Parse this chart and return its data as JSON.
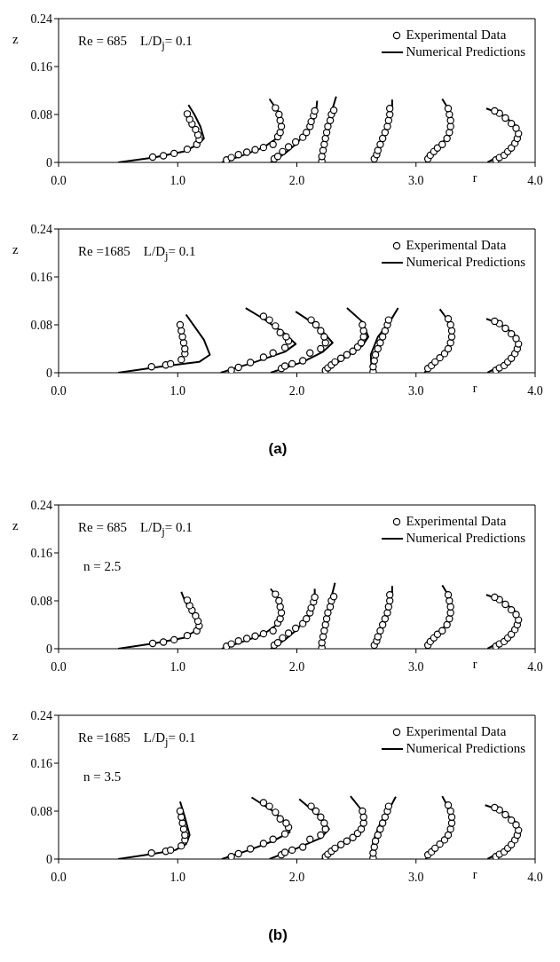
{
  "chart_data": [
    {
      "type": "scatter",
      "xlabel": "r",
      "ylabel": "z",
      "xlim": [
        0,
        4
      ],
      "ylim": [
        0,
        0.24
      ],
      "xticks": [
        {
          "value": 0,
          "label": "0.0"
        },
        {
          "value": 1,
          "label": "1.0"
        },
        {
          "value": 2,
          "label": "2.0"
        },
        {
          "value": 3,
          "label": "3.0"
        },
        {
          "value": 4,
          "label": "4.0"
        }
      ],
      "yticks": [
        0,
        0.08,
        0.16,
        0.24
      ],
      "legend": "top right",
      "annotations": [
        "Re = 685    L/D$_{j}$= 0.1"
      ],
      "series": [
        {
          "name": "Experimental Data",
          "type": "scatter",
          "color": "#000000",
          "marker": "circle",
          "x": [
            0.79,
            0.88,
            0.97,
            1.08,
            1.16,
            1.18,
            1.17,
            1.15,
            1.12,
            1.1,
            1.08,
            1.41,
            1.45,
            1.51,
            1.58,
            1.65,
            1.72,
            1.8,
            1.84,
            1.86,
            1.87,
            1.86,
            1.85,
            1.82,
            1.81,
            1.84,
            1.88,
            1.93,
            1.99,
            2.05,
            2.08,
            2.11,
            2.12,
            2.14,
            2.15,
            2.21,
            2.21,
            2.22,
            2.23,
            2.24,
            2.25,
            2.26,
            2.28,
            2.29,
            2.31,
            2.65,
            2.67,
            2.68,
            2.7,
            2.72,
            2.74,
            2.76,
            2.77,
            2.78,
            2.78,
            3.1,
            3.12,
            3.15,
            3.18,
            3.22,
            3.26,
            3.28,
            3.29,
            3.29,
            3.28,
            3.27,
            3.67,
            3.7,
            3.74,
            3.77,
            3.8,
            3.83,
            3.85,
            3.86,
            3.84,
            3.8,
            3.75,
            3.7,
            3.66
          ],
          "values": [
            0.009,
            0.011,
            0.015,
            0.022,
            0.03,
            0.038,
            0.046,
            0.055,
            0.064,
            0.072,
            0.081,
            0.004,
            0.008,
            0.013,
            0.017,
            0.021,
            0.025,
            0.03,
            0.043,
            0.05,
            0.06,
            0.07,
            0.08,
            0.091,
            0.006,
            0.01,
            0.018,
            0.026,
            0.034,
            0.042,
            0.05,
            0.06,
            0.068,
            0.078,
            0.086,
            0.002,
            0.01,
            0.02,
            0.03,
            0.04,
            0.05,
            0.06,
            0.07,
            0.08,
            0.087,
            0.006,
            0.013,
            0.02,
            0.03,
            0.04,
            0.05,
            0.06,
            0.07,
            0.08,
            0.09,
            0.006,
            0.012,
            0.018,
            0.024,
            0.03,
            0.04,
            0.05,
            0.06,
            0.07,
            0.08,
            0.09,
            0.004,
            0.008,
            0.012,
            0.018,
            0.024,
            0.032,
            0.04,
            0.048,
            0.057,
            0.065,
            0.074,
            0.082,
            0.086
          ]
        },
        {
          "name": "Numerical Predictions",
          "type": "line",
          "color": "#000000",
          "line_style": "solid",
          "x": [
            0.5,
            0.8,
            1.05,
            1.17,
            1.22,
            1.19,
            1.14,
            1.09,
            null,
            1.37,
            1.55,
            1.72,
            1.83,
            1.88,
            1.86,
            1.77,
            null,
            1.78,
            1.9,
            2.0,
            2.1,
            2.16,
            2.17,
            null,
            2.2,
            2.23,
            2.27,
            2.33,
            null,
            2.64,
            2.7,
            2.76,
            2.8,
            2.8,
            null,
            3.08,
            3.2,
            3.28,
            3.3,
            3.27,
            3.22,
            null,
            3.6,
            3.75,
            3.84,
            3.87,
            3.82,
            3.7,
            3.59
          ],
          "values": [
            0,
            0.008,
            0.018,
            0.03,
            0.04,
            0.06,
            0.08,
            0.096,
            null,
            0,
            0.012,
            0.025,
            0.04,
            0.06,
            0.08,
            0.106,
            null,
            0,
            0.015,
            0.032,
            0.055,
            0.08,
            0.103,
            null,
            0,
            0.04,
            0.07,
            0.11,
            null,
            0,
            0.03,
            0.06,
            0.09,
            0.105,
            null,
            0,
            0.025,
            0.05,
            0.07,
            0.09,
            0.106,
            null,
            0,
            0.016,
            0.032,
            0.048,
            0.065,
            0.082,
            0.09
          ]
        }
      ]
    },
    {
      "type": "scatter",
      "xlabel": "r",
      "ylabel": "z",
      "xlim": [
        0,
        4
      ],
      "ylim": [
        0,
        0.24
      ],
      "xticks": [
        {
          "value": 0,
          "label": "0.0"
        },
        {
          "value": 1,
          "label": "1.0"
        },
        {
          "value": 2,
          "label": "2.0"
        },
        {
          "value": 3,
          "label": "3.0"
        },
        {
          "value": 4,
          "label": "4.0"
        }
      ],
      "yticks": [
        0,
        0.08,
        0.16,
        0.24
      ],
      "legend": "top right",
      "annotations": [
        "Re =1685    L/D$_{j}$= 0.1"
      ],
      "series": [
        {
          "name": "Experimental Data",
          "type": "scatter",
          "color": "#000000",
          "marker": "circle",
          "x": [
            0.78,
            0.9,
            0.94,
            1.03,
            1.06,
            1.06,
            1.05,
            1.04,
            1.03,
            1.02,
            1.45,
            1.51,
            1.61,
            1.72,
            1.8,
            1.9,
            1.93,
            1.91,
            1.86,
            1.82,
            1.77,
            1.72,
            1.87,
            1.9,
            1.96,
            2.05,
            2.11,
            2.2,
            2.24,
            2.23,
            2.2,
            2.16,
            2.12,
            2.24,
            2.26,
            2.29,
            2.32,
            2.37,
            2.42,
            2.47,
            2.51,
            2.54,
            2.56,
            2.56,
            2.55,
            2.64,
            2.64,
            2.65,
            2.66,
            2.68,
            2.7,
            2.72,
            2.74,
            2.76,
            2.77,
            3.1,
            3.13,
            3.16,
            3.2,
            3.24,
            3.27,
            3.29,
            3.3,
            3.3,
            3.29,
            3.27,
            3.67,
            3.7,
            3.74,
            3.77,
            3.8,
            3.83,
            3.85,
            3.86,
            3.84,
            3.8,
            3.75,
            3.7,
            3.66
          ],
          "values": [
            0.01,
            0.013,
            0.015,
            0.022,
            0.032,
            0.04,
            0.05,
            0.06,
            0.07,
            0.08,
            0.004,
            0.009,
            0.017,
            0.026,
            0.033,
            0.042,
            0.053,
            0.06,
            0.067,
            0.078,
            0.088,
            0.094,
            0.007,
            0.011,
            0.015,
            0.02,
            0.033,
            0.04,
            0.05,
            0.06,
            0.07,
            0.08,
            0.088,
            0.004,
            0.008,
            0.013,
            0.018,
            0.024,
            0.03,
            0.036,
            0.043,
            0.05,
            0.06,
            0.07,
            0.08,
            0.002,
            0.01,
            0.02,
            0.03,
            0.04,
            0.05,
            0.06,
            0.07,
            0.08,
            0.088,
            0.007,
            0.012,
            0.018,
            0.025,
            0.032,
            0.04,
            0.05,
            0.06,
            0.07,
            0.08,
            0.09,
            0.004,
            0.008,
            0.012,
            0.018,
            0.024,
            0.032,
            0.04,
            0.048,
            0.057,
            0.065,
            0.074,
            0.082,
            0.086
          ]
        },
        {
          "name": "Numerical Predictions",
          "type": "line",
          "color": "#000000",
          "line_style": "solid",
          "x": [
            0.5,
            0.85,
            1.18,
            1.27,
            1.22,
            1.07,
            null,
            1.36,
            1.65,
            1.9,
            1.99,
            1.9,
            1.72,
            1.57,
            null,
            1.78,
            2.05,
            2.22,
            2.3,
            2.22,
            2.12,
            1.99,
            null,
            2.22,
            2.4,
            2.55,
            2.6,
            2.55,
            2.42,
            null,
            2.63,
            2.62,
            2.68,
            2.78,
            2.85,
            null,
            3.07,
            3.2,
            3.29,
            3.3,
            3.26,
            3.2,
            null,
            3.6,
            3.75,
            3.84,
            3.87,
            3.82,
            3.7,
            3.59
          ],
          "values": [
            0,
            0.01,
            0.018,
            0.03,
            0.055,
            0.097,
            null,
            0,
            0.018,
            0.035,
            0.048,
            0.065,
            0.09,
            0.108,
            null,
            0,
            0.018,
            0.035,
            0.05,
            0.068,
            0.085,
            0.102,
            null,
            0,
            0.025,
            0.045,
            0.06,
            0.085,
            0.108,
            null,
            0,
            0.03,
            0.06,
            0.085,
            0.108,
            null,
            0,
            0.025,
            0.05,
            0.07,
            0.09,
            0.106,
            null,
            0,
            0.016,
            0.032,
            0.048,
            0.065,
            0.082,
            0.09
          ]
        }
      ]
    },
    {
      "type": "other",
      "annotations": [
        "(a)"
      ]
    },
    {
      "type": "scatter",
      "xlabel": "r",
      "ylabel": "z",
      "xlim": [
        0,
        4
      ],
      "ylim": [
        0,
        0.24
      ],
      "xticks": [
        {
          "value": 0,
          "label": "0.0"
        },
        {
          "value": 1,
          "label": "1.0"
        },
        {
          "value": 2,
          "label": "2.0"
        },
        {
          "value": 3,
          "label": "3.0"
        },
        {
          "value": 4,
          "label": "4.0"
        }
      ],
      "yticks": [
        0,
        0.08,
        0.16,
        0.24
      ],
      "legend": "top right",
      "annotations": [
        "Re = 685    L/D$_{j}$= 0.1",
        "n = 2.5"
      ],
      "series": [
        {
          "name": "Experimental Data",
          "type": "scatter",
          "color": "#000000",
          "marker": "circle",
          "x": [
            0.79,
            0.88,
            0.97,
            1.08,
            1.16,
            1.18,
            1.17,
            1.15,
            1.12,
            1.1,
            1.08,
            1.41,
            1.45,
            1.51,
            1.58,
            1.65,
            1.72,
            1.8,
            1.84,
            1.86,
            1.87,
            1.86,
            1.85,
            1.82,
            1.81,
            1.84,
            1.88,
            1.93,
            1.99,
            2.05,
            2.08,
            2.11,
            2.12,
            2.14,
            2.15,
            2.21,
            2.21,
            2.22,
            2.23,
            2.24,
            2.25,
            2.26,
            2.28,
            2.29,
            2.31,
            2.65,
            2.67,
            2.68,
            2.7,
            2.72,
            2.74,
            2.76,
            2.77,
            2.78,
            2.78,
            3.1,
            3.12,
            3.15,
            3.18,
            3.22,
            3.26,
            3.28,
            3.29,
            3.29,
            3.28,
            3.27,
            3.67,
            3.7,
            3.74,
            3.77,
            3.8,
            3.83,
            3.85,
            3.86,
            3.84,
            3.8,
            3.75,
            3.7,
            3.66
          ],
          "values": [
            0.009,
            0.011,
            0.015,
            0.022,
            0.03,
            0.038,
            0.046,
            0.055,
            0.064,
            0.072,
            0.081,
            0.004,
            0.008,
            0.013,
            0.017,
            0.021,
            0.025,
            0.03,
            0.043,
            0.05,
            0.06,
            0.07,
            0.08,
            0.091,
            0.006,
            0.01,
            0.018,
            0.026,
            0.034,
            0.042,
            0.05,
            0.06,
            0.068,
            0.078,
            0.086,
            0.002,
            0.01,
            0.02,
            0.03,
            0.04,
            0.05,
            0.06,
            0.07,
            0.08,
            0.087,
            0.006,
            0.013,
            0.02,
            0.03,
            0.04,
            0.05,
            0.06,
            0.07,
            0.08,
            0.09,
            0.006,
            0.012,
            0.018,
            0.024,
            0.03,
            0.04,
            0.05,
            0.06,
            0.07,
            0.08,
            0.09,
            0.004,
            0.008,
            0.012,
            0.018,
            0.024,
            0.032,
            0.04,
            0.048,
            0.057,
            0.065,
            0.074,
            0.082,
            0.086
          ]
        },
        {
          "name": "Numerical Predictions",
          "type": "line",
          "color": "#000000",
          "line_style": "solid",
          "x": [
            0.5,
            0.8,
            1.05,
            1.15,
            1.17,
            1.12,
            1.06,
            1.03,
            null,
            1.37,
            1.55,
            1.72,
            1.83,
            1.88,
            1.86,
            1.78,
            null,
            1.78,
            1.9,
            2.0,
            2.1,
            2.15,
            2.15,
            null,
            2.21,
            2.23,
            2.27,
            2.32,
            null,
            2.64,
            2.7,
            2.76,
            2.8,
            2.8,
            null,
            3.08,
            3.2,
            3.28,
            3.3,
            3.27,
            3.22,
            null,
            3.6,
            3.75,
            3.84,
            3.87,
            3.82,
            3.7,
            3.59
          ],
          "values": [
            0,
            0.009,
            0.018,
            0.03,
            0.04,
            0.06,
            0.08,
            0.095,
            null,
            0,
            0.012,
            0.024,
            0.04,
            0.06,
            0.08,
            0.1,
            null,
            0,
            0.015,
            0.032,
            0.055,
            0.08,
            0.1,
            null,
            0,
            0.04,
            0.07,
            0.11,
            null,
            0,
            0.03,
            0.06,
            0.09,
            0.105,
            null,
            0,
            0.025,
            0.05,
            0.07,
            0.09,
            0.106,
            null,
            0,
            0.016,
            0.032,
            0.048,
            0.065,
            0.082,
            0.09
          ]
        }
      ]
    },
    {
      "type": "scatter",
      "xlabel": "r",
      "ylabel": "z",
      "xlim": [
        0,
        4
      ],
      "ylim": [
        0,
        0.24
      ],
      "xticks": [
        {
          "value": 0,
          "label": "0.0"
        },
        {
          "value": 1,
          "label": "1.0"
        },
        {
          "value": 2,
          "label": "2.0"
        },
        {
          "value": 3,
          "label": "3.0"
        },
        {
          "value": 4,
          "label": "4.0"
        }
      ],
      "yticks": [
        0,
        0.08,
        0.16,
        0.24
      ],
      "legend": "top right",
      "annotations": [
        "Re =1685    L/D$_{j}$= 0.1",
        "n = 3.5"
      ],
      "series": [
        {
          "name": "Experimental Data",
          "type": "scatter",
          "color": "#000000",
          "marker": "circle",
          "x": [
            0.78,
            0.9,
            0.94,
            1.03,
            1.06,
            1.06,
            1.05,
            1.04,
            1.03,
            1.02,
            1.45,
            1.51,
            1.61,
            1.72,
            1.8,
            1.9,
            1.93,
            1.91,
            1.86,
            1.82,
            1.77,
            1.72,
            1.87,
            1.9,
            1.96,
            2.05,
            2.11,
            2.2,
            2.24,
            2.23,
            2.2,
            2.16,
            2.12,
            2.24,
            2.26,
            2.29,
            2.32,
            2.37,
            2.42,
            2.47,
            2.51,
            2.54,
            2.56,
            2.56,
            2.55,
            2.64,
            2.64,
            2.65,
            2.66,
            2.68,
            2.7,
            2.72,
            2.74,
            2.76,
            2.77,
            3.1,
            3.13,
            3.16,
            3.2,
            3.24,
            3.27,
            3.29,
            3.3,
            3.3,
            3.29,
            3.27,
            3.67,
            3.7,
            3.74,
            3.77,
            3.8,
            3.83,
            3.85,
            3.86,
            3.84,
            3.8,
            3.75,
            3.7,
            3.66
          ],
          "values": [
            0.01,
            0.013,
            0.015,
            0.022,
            0.032,
            0.04,
            0.05,
            0.06,
            0.07,
            0.08,
            0.004,
            0.009,
            0.017,
            0.026,
            0.033,
            0.042,
            0.053,
            0.06,
            0.067,
            0.078,
            0.088,
            0.094,
            0.007,
            0.011,
            0.015,
            0.02,
            0.033,
            0.04,
            0.05,
            0.06,
            0.07,
            0.08,
            0.088,
            0.004,
            0.008,
            0.013,
            0.018,
            0.024,
            0.03,
            0.036,
            0.043,
            0.05,
            0.06,
            0.07,
            0.08,
            0.002,
            0.01,
            0.02,
            0.03,
            0.04,
            0.05,
            0.06,
            0.07,
            0.08,
            0.088,
            0.007,
            0.012,
            0.018,
            0.025,
            0.032,
            0.04,
            0.05,
            0.06,
            0.07,
            0.08,
            0.09,
            0.004,
            0.008,
            0.012,
            0.018,
            0.024,
            0.032,
            0.04,
            0.048,
            0.057,
            0.065,
            0.074,
            0.082,
            0.086
          ]
        },
        {
          "name": "Numerical Predictions",
          "type": "line",
          "color": "#000000",
          "line_style": "solid",
          "x": [
            0.5,
            0.8,
            0.98,
            1.07,
            1.1,
            1.06,
            1.02,
            null,
            1.37,
            1.6,
            1.8,
            1.94,
            1.92,
            1.8,
            1.62,
            null,
            1.77,
            2.0,
            2.2,
            2.27,
            2.2,
            2.02,
            null,
            2.21,
            2.35,
            2.5,
            2.58,
            2.55,
            2.45,
            null,
            2.63,
            2.64,
            2.7,
            2.78,
            2.83,
            null,
            3.08,
            3.2,
            3.29,
            3.3,
            3.26,
            3.22,
            null,
            3.6,
            3.75,
            3.85,
            3.88,
            3.82,
            3.7,
            3.58
          ],
          "values": [
            0,
            0.009,
            0.015,
            0.025,
            0.04,
            0.07,
            0.096,
            null,
            0,
            0.015,
            0.03,
            0.045,
            0.058,
            0.08,
            0.103,
            null,
            0,
            0.018,
            0.035,
            0.05,
            0.07,
            0.1,
            null,
            0,
            0.02,
            0.04,
            0.06,
            0.08,
            0.105,
            null,
            0,
            0.03,
            0.06,
            0.085,
            0.104,
            null,
            0,
            0.025,
            0.05,
            0.07,
            0.09,
            0.105,
            null,
            0,
            0.016,
            0.032,
            0.048,
            0.065,
            0.082,
            0.09
          ]
        }
      ]
    },
    {
      "type": "other",
      "annotations": [
        "(b)"
      ]
    }
  ]
}
